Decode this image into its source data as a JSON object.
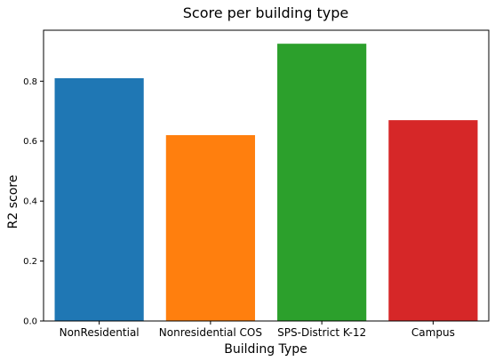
{
  "chart_data": {
    "type": "bar",
    "title": "Score per building type",
    "xlabel": "Building Type",
    "ylabel": "R2 score",
    "categories": [
      "NonResidential",
      "Nonresidential COS",
      "SPS-District K-12",
      "Campus"
    ],
    "values": [
      0.81,
      0.62,
      0.925,
      0.67
    ],
    "colors": [
      "#1f77b4",
      "#ff7f0e",
      "#2ca02c",
      "#d62728"
    ],
    "ylim": [
      0,
      0.97
    ],
    "yticks": [
      "0.0",
      "0.2",
      "0.4",
      "0.6",
      "0.8"
    ],
    "grid": false,
    "legend": "none"
  }
}
